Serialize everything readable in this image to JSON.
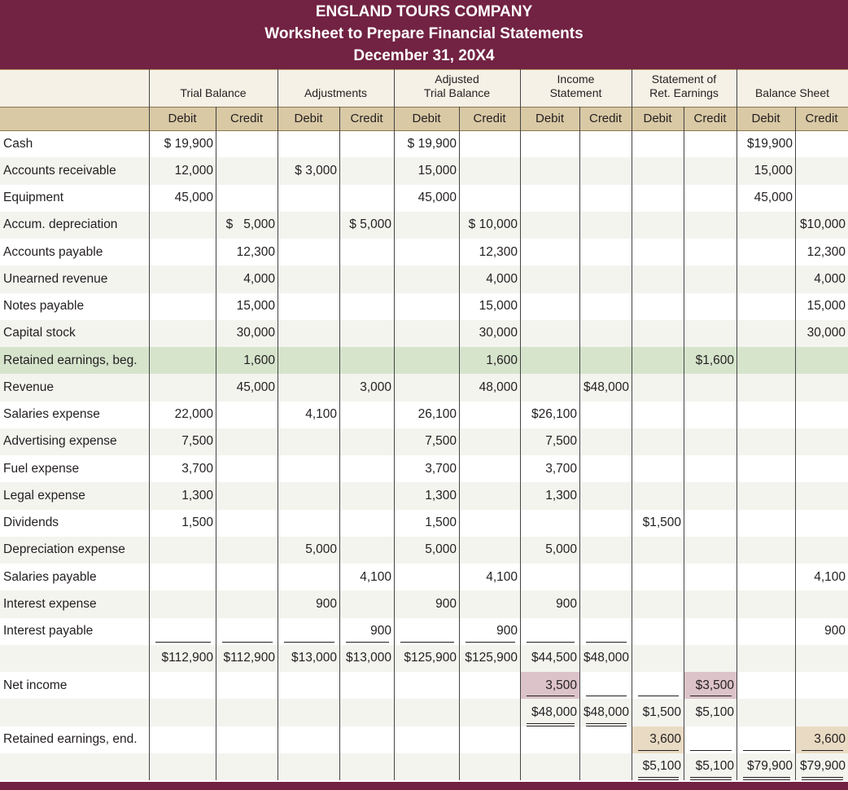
{
  "header": {
    "company": "ENGLAND TOURS COMPANY",
    "title": "Worksheet to Prepare Financial Statements",
    "date": "December 31, 20X4"
  },
  "table": {
    "groups": [
      [
        "Trial Balance"
      ],
      [
        "Adjustments"
      ],
      [
        "Adjusted",
        "Trial Balance"
      ],
      [
        "Income",
        "Statement"
      ],
      [
        "Statement of",
        "Ret. Earnings"
      ],
      [
        "Balance Sheet"
      ]
    ],
    "subheaders": [
      "Debit",
      "Credit",
      "Debit",
      "Credit",
      "Debit",
      "Credit",
      "Debit",
      "Credit",
      "Debit",
      "Credit",
      "Debit",
      "Credit"
    ],
    "rows": [
      [
        "Cash",
        "$ 19,900",
        null,
        null,
        null,
        "$ 19,900",
        null,
        null,
        null,
        null,
        null,
        "$19,900",
        null
      ],
      [
        "Accounts receivable",
        "12,000",
        null,
        "$ 3,000",
        null,
        "15,000",
        null,
        null,
        null,
        null,
        null,
        "15,000",
        null
      ],
      [
        "Equipment",
        "45,000",
        null,
        null,
        null,
        "45,000",
        null,
        null,
        null,
        null,
        null,
        "45,000",
        null
      ],
      [
        "Accum. depreciation",
        null,
        "$   5,000",
        null,
        "$ 5,000",
        null,
        "$ 10,000",
        null,
        null,
        null,
        null,
        null,
        "$10,000"
      ],
      [
        "Accounts payable",
        null,
        "12,300",
        null,
        null,
        null,
        "12,300",
        null,
        null,
        null,
        null,
        null,
        "12,300"
      ],
      [
        "Unearned revenue",
        null,
        "4,000",
        null,
        null,
        null,
        "4,000",
        null,
        null,
        null,
        null,
        null,
        "4,000"
      ],
      [
        "Notes payable",
        null,
        "15,000",
        null,
        null,
        null,
        "15,000",
        null,
        null,
        null,
        null,
        null,
        "15,000"
      ],
      [
        "Capital stock",
        null,
        "30,000",
        null,
        null,
        null,
        "30,000",
        null,
        null,
        null,
        null,
        null,
        "30,000"
      ],
      [
        "Retained earnings, beg.",
        null,
        "1,600",
        null,
        null,
        null,
        "1,600",
        null,
        null,
        null,
        "$1,600",
        null,
        null
      ],
      [
        "Revenue",
        null,
        "45,000",
        null,
        "3,000",
        null,
        "48,000",
        null,
        "$48,000",
        null,
        null,
        null,
        null
      ],
      [
        "Salaries expense",
        "22,000",
        null,
        "4,100",
        null,
        "26,100",
        null,
        "$26,100",
        null,
        null,
        null,
        null,
        null
      ],
      [
        "Advertising expense",
        "7,500",
        null,
        null,
        null,
        "7,500",
        null,
        "7,500",
        null,
        null,
        null,
        null,
        null
      ],
      [
        "Fuel expense",
        "3,700",
        null,
        null,
        null,
        "3,700",
        null,
        "3,700",
        null,
        null,
        null,
        null,
        null
      ],
      [
        "Legal expense",
        "1,300",
        null,
        null,
        null,
        "1,300",
        null,
        "1,300",
        null,
        null,
        null,
        null,
        null
      ],
      [
        "Dividends",
        "1,500",
        null,
        null,
        null,
        "1,500",
        null,
        null,
        null,
        "$1,500",
        null,
        null,
        null
      ],
      [
        "Depreciation expense",
        null,
        null,
        "5,000",
        null,
        "5,000",
        null,
        "5,000",
        null,
        null,
        null,
        null,
        null
      ],
      [
        "Salaries payable",
        null,
        null,
        null,
        "4,100",
        null,
        "4,100",
        null,
        null,
        null,
        null,
        null,
        "4,100"
      ],
      [
        "Interest expense",
        null,
        null,
        "900",
        null,
        "900",
        null,
        "900",
        null,
        null,
        null,
        null,
        null
      ],
      [
        "Interest payable",
        null,
        null,
        null,
        "900",
        null,
        "900",
        null,
        null,
        null,
        null,
        null,
        "900"
      ],
      [
        null,
        "$112,900",
        "$112,900",
        "$13,000",
        "$13,000",
        "$125,900",
        "$125,900",
        "$44,500",
        "$48,000",
        null,
        null,
        null,
        null
      ],
      [
        "Net income",
        null,
        null,
        null,
        null,
        null,
        null,
        "3,500",
        null,
        null,
        "$3,500",
        null,
        null
      ],
      [
        null,
        null,
        null,
        null,
        null,
        null,
        null,
        "$48,000",
        "$48,000",
        "$1,500",
        "$5,100",
        null,
        null
      ],
      [
        "Retained earnings, end.",
        null,
        null,
        null,
        null,
        null,
        null,
        null,
        null,
        "3,600",
        null,
        null,
        "3,600"
      ],
      [
        null,
        null,
        null,
        null,
        null,
        null,
        null,
        null,
        null,
        "$5,100",
        "$5,100",
        "$79,900",
        "$79,900"
      ]
    ]
  }
}
